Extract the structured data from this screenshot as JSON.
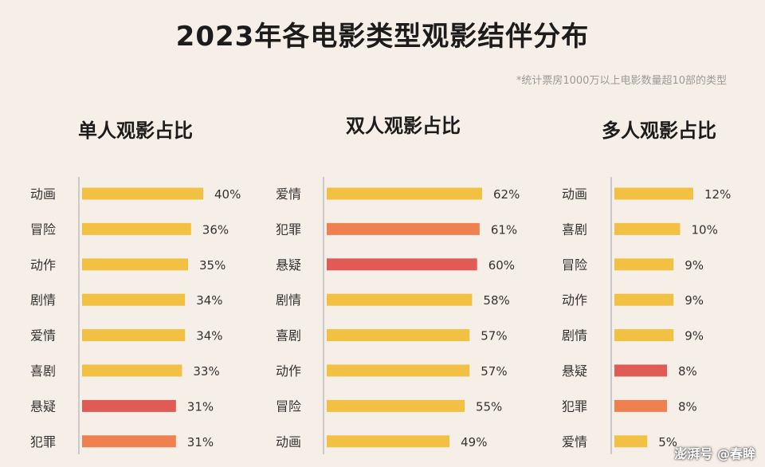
{
  "title": "2023年各电影类型观影结伴分布",
  "subtitle": "*统计票房1000万以上电影数量超10部的类型",
  "watermark": "澎湃号 @春眸",
  "colors": {
    "yellow": "#f2c042",
    "orange": "#ef8150",
    "red": "#e25a55",
    "axis": "#bdbdbd"
  },
  "chart_data": [
    {
      "type": "bar",
      "title": "单人观影占比",
      "categories": [
        "动画",
        "冒险",
        "动作",
        "剧情",
        "爱情",
        "喜剧",
        "悬疑",
        "犯罪"
      ],
      "values": [
        40,
        36,
        35,
        34,
        34,
        33,
        31,
        31
      ],
      "labels": [
        "40%",
        "36%",
        "35%",
        "34%",
        "34%",
        "33%",
        "31%",
        "31%"
      ],
      "bar_colors": [
        "yellow",
        "yellow",
        "yellow",
        "yellow",
        "yellow",
        "yellow",
        "red",
        "orange"
      ],
      "xlim": [
        0,
        40
      ]
    },
    {
      "type": "bar",
      "title": "双人观影占比",
      "categories": [
        "爱情",
        "犯罪",
        "悬疑",
        "剧情",
        "喜剧",
        "动作",
        "冒险",
        "动画"
      ],
      "values": [
        62,
        61,
        60,
        58,
        57,
        57,
        55,
        49
      ],
      "labels": [
        "62%",
        "61%",
        "60%",
        "58%",
        "57%",
        "57%",
        "55%",
        "49%"
      ],
      "bar_colors": [
        "yellow",
        "orange",
        "red",
        "yellow",
        "yellow",
        "yellow",
        "yellow",
        "yellow"
      ],
      "xlim": [
        0,
        62
      ]
    },
    {
      "type": "bar",
      "title": "多人观影占比",
      "categories": [
        "动画",
        "喜剧",
        "冒险",
        "动作",
        "剧情",
        "悬疑",
        "犯罪",
        "爱情"
      ],
      "values": [
        12,
        10,
        9,
        9,
        9,
        8,
        8,
        5
      ],
      "labels": [
        "12%",
        "10%",
        "9%",
        "9%",
        "9%",
        "8%",
        "8%",
        "5%"
      ],
      "bar_colors": [
        "yellow",
        "yellow",
        "yellow",
        "yellow",
        "yellow",
        "red",
        "orange",
        "yellow"
      ],
      "xlim": [
        0,
        12
      ]
    }
  ]
}
